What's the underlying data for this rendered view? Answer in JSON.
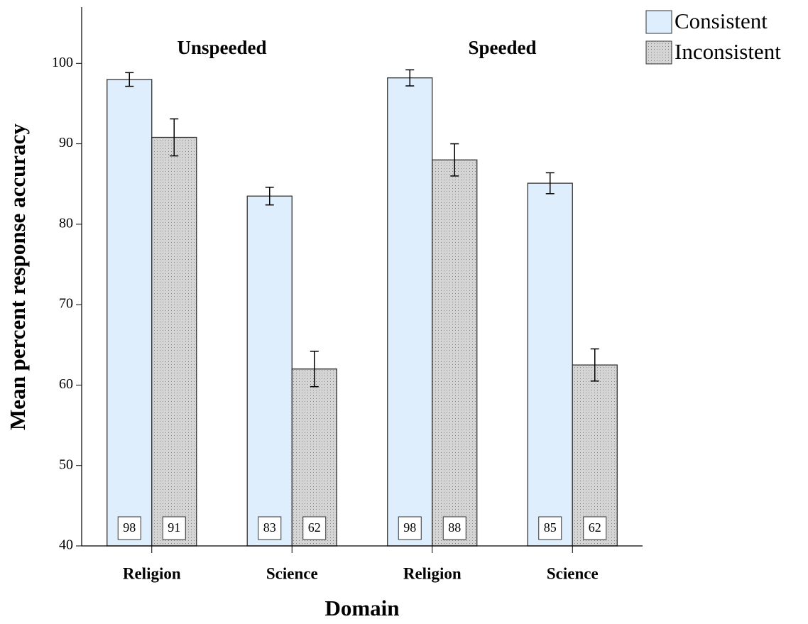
{
  "chart_data": {
    "type": "bar",
    "x_label": "Domain",
    "y_label": "Mean percent response accuracy",
    "panels": [
      "Unspeeded",
      "Speeded"
    ],
    "categories": [
      "Religion",
      "Science",
      "Religion",
      "Science"
    ],
    "series": [
      {
        "name": "Consistent",
        "color": "#deeefc",
        "hatch": "none",
        "values": [
          98.0,
          83.5,
          98.2,
          85.1
        ],
        "errors": [
          0.85,
          1.1,
          1.0,
          1.3
        ],
        "value_labels": [
          "98",
          "83",
          "98",
          "85"
        ]
      },
      {
        "name": "Inconsistent",
        "color": "#cdcdcd",
        "hatch": "dots",
        "values": [
          90.8,
          62.0,
          88.0,
          62.5
        ],
        "errors": [
          2.3,
          2.2,
          2.0,
          2.0
        ],
        "value_labels": [
          "91",
          "62",
          "88",
          "62"
        ]
      }
    ],
    "ylim": [
      40,
      107
    ],
    "yticks": [
      40,
      50,
      60,
      70,
      80,
      90,
      100
    ],
    "legend": "top-right"
  }
}
